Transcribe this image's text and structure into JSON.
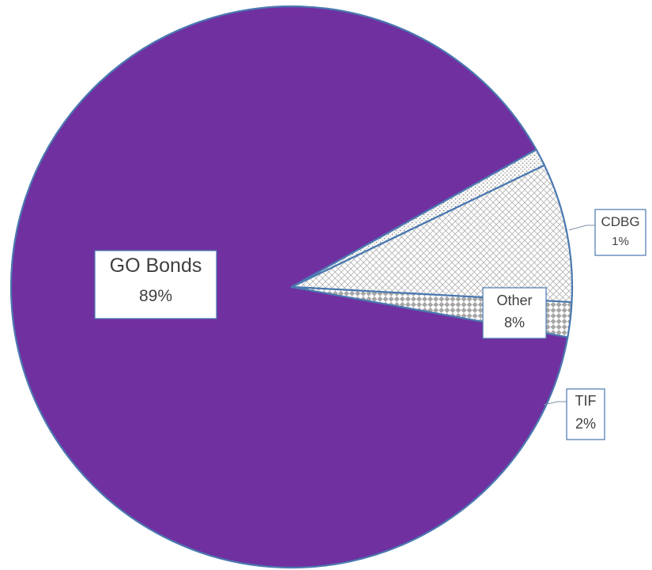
{
  "chart_data": {
    "type": "pie",
    "title": "",
    "slices": [
      {
        "label": "GO Bonds",
        "value": 89,
        "value_label": "89%",
        "color": "#7030a0",
        "pattern": "solid"
      },
      {
        "label": "CDBG",
        "value": 1,
        "value_label": "1%",
        "color": "#bfbfbf",
        "pattern": "dots"
      },
      {
        "label": "Other",
        "value": 8,
        "value_label": "8%",
        "color": "#bfbfbf",
        "pattern": "crosshatch"
      },
      {
        "label": "TIF",
        "value": 2,
        "value_label": "2%",
        "color": "#a6a6a6",
        "pattern": "checker"
      }
    ],
    "slice_border_color": "#4a78b0",
    "legend": "none"
  }
}
